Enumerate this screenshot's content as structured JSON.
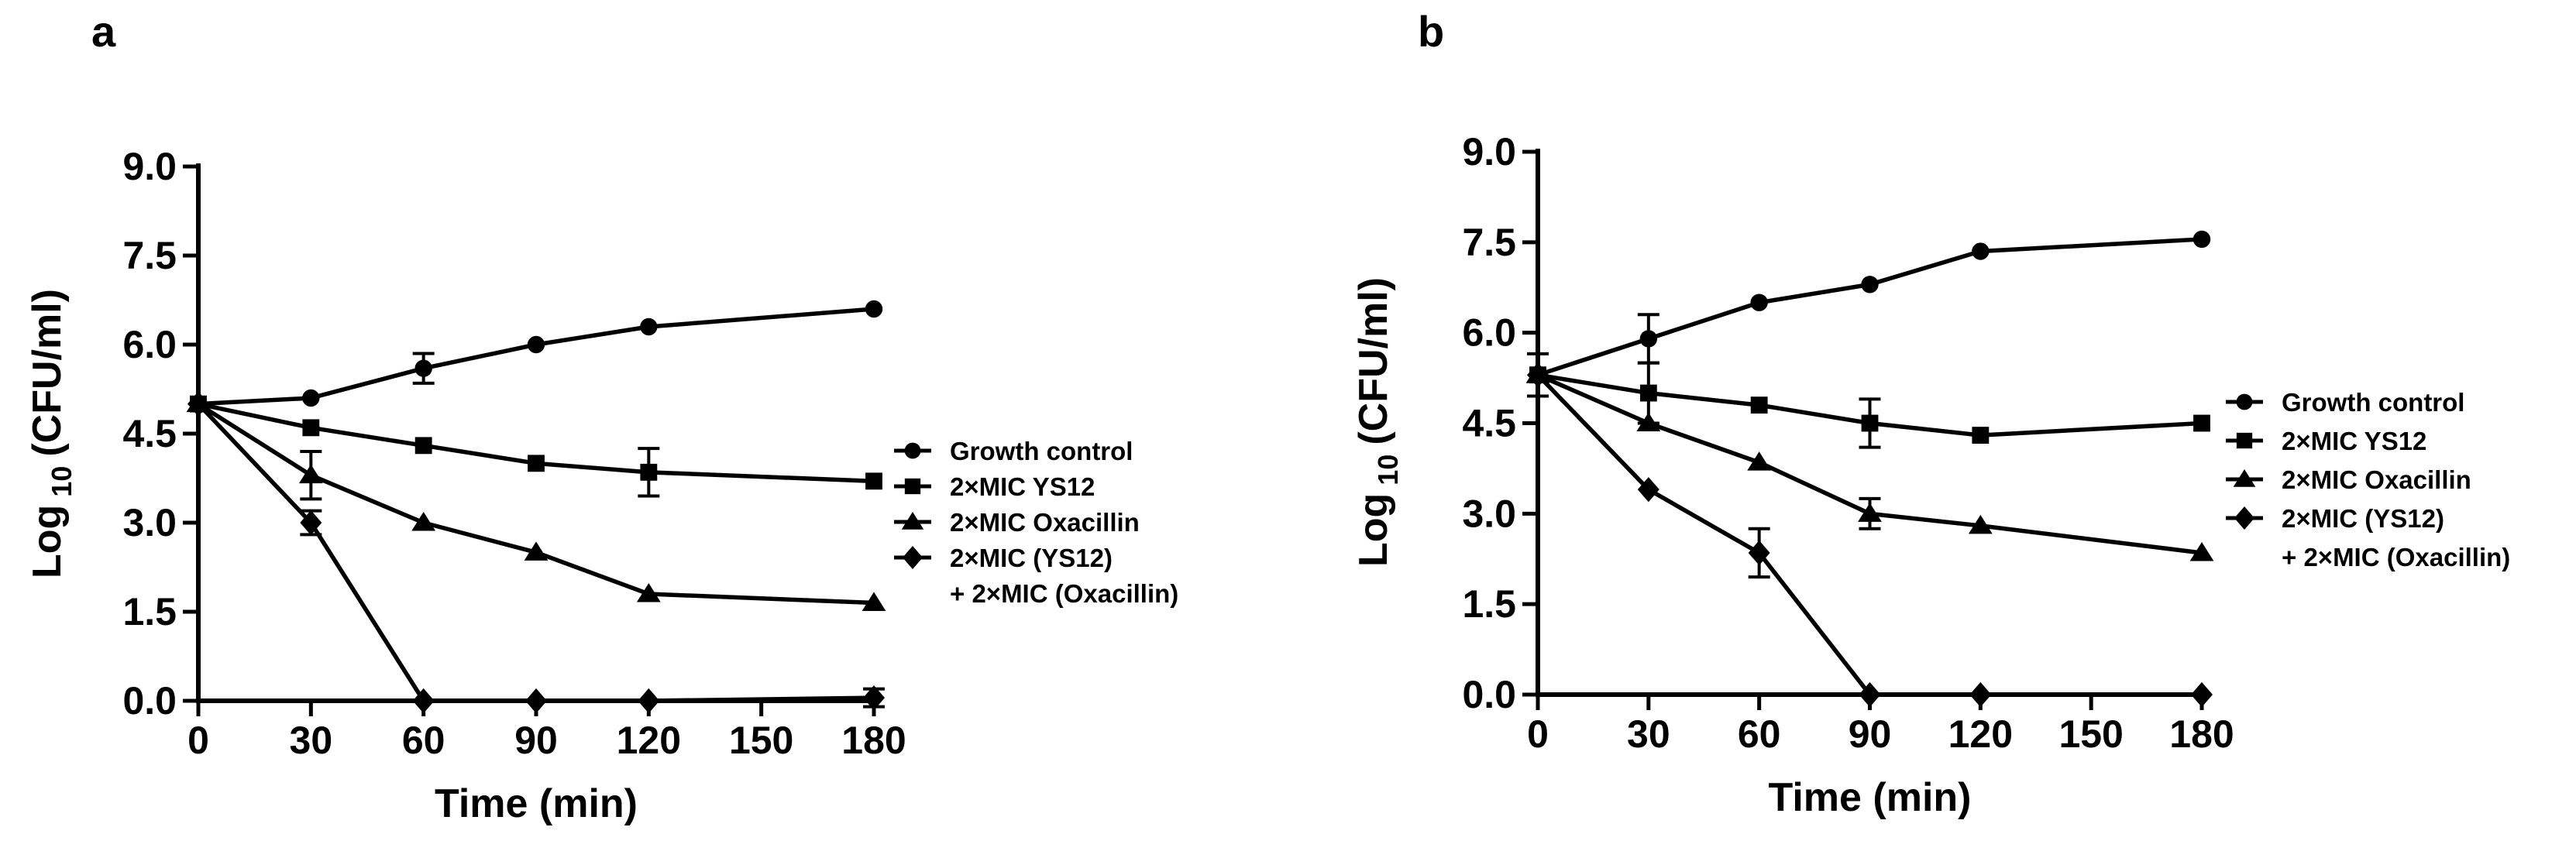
{
  "chart_data": [
    {
      "panel": "a",
      "type": "line",
      "xlabel": "Time (min)",
      "ylabel": "Log 10 (CFU/ml)",
      "ylabel_main": "Log",
      "ylabel_sub": "10",
      "ylabel_unit": "(CFU/ml)",
      "xlim": [
        0,
        180
      ],
      "ylim": [
        0,
        9
      ],
      "xticks": [
        "0",
        "30",
        "60",
        "90",
        "120",
        "150",
        "180"
      ],
      "yticks": [
        "0.0",
        "1.5",
        "3.0",
        "4.5",
        "6.0",
        "7.5",
        "9.0"
      ],
      "legend_continuation": "+ 2×MIC (Oxacillin)",
      "series": [
        {
          "name": "Growth control",
          "marker": "circle",
          "x": [
            0,
            30,
            60,
            90,
            120,
            180
          ],
          "y": [
            5.0,
            5.1,
            5.6,
            6.0,
            6.3,
            6.6
          ],
          "err": [
            0.05,
            0.05,
            0.25,
            0.05,
            0.05,
            0.05
          ]
        },
        {
          "name": "2×MIC YS12",
          "marker": "square",
          "x": [
            0,
            30,
            60,
            90,
            120,
            180
          ],
          "y": [
            5.0,
            4.6,
            4.3,
            4.0,
            3.85,
            3.7
          ],
          "err": [
            0.05,
            0.05,
            0.05,
            0.05,
            0.4,
            0.05
          ]
        },
        {
          "name": "2×MIC Oxacillin",
          "marker": "triangle",
          "x": [
            0,
            30,
            60,
            90,
            120,
            180
          ],
          "y": [
            5.0,
            3.8,
            3.0,
            2.5,
            1.8,
            1.65
          ],
          "err": [
            0.05,
            0.4,
            0.05,
            0.05,
            0.05,
            0.05
          ]
        },
        {
          "name": "2×MIC (YS12)",
          "marker": "diamond",
          "x": [
            0,
            30,
            60,
            90,
            120,
            180
          ],
          "y": [
            5.0,
            3.0,
            0.0,
            0.0,
            0.0,
            0.05
          ],
          "err": [
            0.05,
            0.2,
            0.0,
            0.0,
            0.0,
            0.15
          ]
        }
      ]
    },
    {
      "panel": "b",
      "type": "line",
      "xlabel": "Time (min)",
      "ylabel": "Log 10 (CFU/ml)",
      "ylabel_main": "Log",
      "ylabel_sub": "10",
      "ylabel_unit": "(CFU/ml)",
      "xlim": [
        0,
        180
      ],
      "ylim": [
        0,
        9
      ],
      "xticks": [
        "0",
        "30",
        "60",
        "90",
        "120",
        "150",
        "180"
      ],
      "yticks": [
        "0.0",
        "1.5",
        "3.0",
        "4.5",
        "6.0",
        "7.5",
        "9.0"
      ],
      "legend_continuation": "+ 2×MIC (Oxacillin)",
      "series": [
        {
          "name": "Growth control",
          "marker": "circle",
          "x": [
            0,
            30,
            60,
            90,
            120,
            180
          ],
          "y": [
            5.3,
            5.9,
            6.5,
            6.8,
            7.35,
            7.55
          ],
          "err": [
            0.35,
            0.4,
            0.05,
            0.05,
            0.05,
            0.05
          ]
        },
        {
          "name": "2×MIC YS12",
          "marker": "square",
          "x": [
            0,
            30,
            60,
            90,
            120,
            180
          ],
          "y": [
            5.3,
            5.0,
            4.8,
            4.5,
            4.3,
            4.5
          ],
          "err": [
            0.05,
            0.5,
            0.05,
            0.4,
            0.05,
            0.05
          ]
        },
        {
          "name": "2×MIC Oxacillin",
          "marker": "triangle",
          "x": [
            0,
            30,
            60,
            90,
            120,
            180
          ],
          "y": [
            5.3,
            4.5,
            3.85,
            3.0,
            2.8,
            2.35
          ],
          "err": [
            0.05,
            0.05,
            0.05,
            0.25,
            0.05,
            0.05
          ]
        },
        {
          "name": "2×MIC (YS12)",
          "marker": "diamond",
          "x": [
            0,
            30,
            60,
            90,
            120,
            180
          ],
          "y": [
            5.3,
            3.4,
            2.35,
            0.0,
            0.0,
            0.0
          ],
          "err": [
            0.05,
            0.05,
            0.4,
            0.0,
            0.0,
            0.0
          ]
        }
      ]
    }
  ]
}
